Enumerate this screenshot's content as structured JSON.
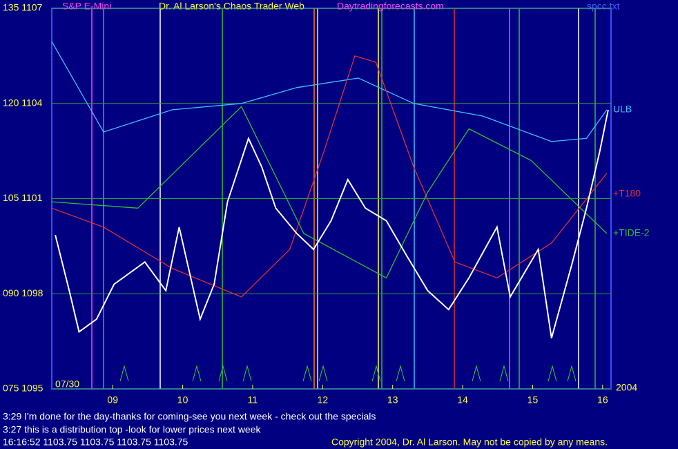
{
  "chart_data": {
    "type": "line",
    "title": "Dr. Al Larson's Chaos Trader Web",
    "site": "Daytradingforecasts.com",
    "instrument": "S&P E-Mini",
    "file": "spcc.txt",
    "start_date": "07/30",
    "year": "2004",
    "xlim": [
      8.13,
      16.12
    ],
    "xticks": [
      {
        "value": 9,
        "label": "09"
      },
      10,
      11,
      12,
      13,
      14,
      15,
      16
    ],
    "ylim": [
      1095,
      1107
    ],
    "yticks": [
      {
        "value": 1095,
        "label": "075 1095"
      },
      {
        "value": 1098,
        "label": "090 1098"
      },
      {
        "value": 1101,
        "label": "105 1101"
      },
      {
        "value": 1104,
        "label": "120 1104"
      },
      {
        "value": 1107,
        "label": "135 1107"
      }
    ],
    "grid": true,
    "series": [
      {
        "name": "ULB",
        "color": "#40c0ff",
        "x": [
          8.13,
          8.87,
          9.85,
          10.84,
          11.63,
          12.51,
          13.3,
          14.29,
          15.27,
          15.77,
          16.06
        ],
        "values": [
          1105.95,
          1103.1,
          1103.8,
          1104.0,
          1104.5,
          1104.8,
          1104.0,
          1103.6,
          1102.8,
          1102.9,
          1103.8
        ]
      },
      {
        "name": "+T180",
        "color": "#e03030",
        "x": [
          8.13,
          8.87,
          9.85,
          10.84,
          11.53,
          12.02,
          12.46,
          12.76,
          13.3,
          13.89,
          14.49,
          15.27,
          16.06
        ],
        "values": [
          1100.7,
          1100.1,
          1098.8,
          1097.9,
          1099.4,
          1102.5,
          1105.5,
          1105.3,
          1102.0,
          1099.0,
          1098.5,
          1099.6,
          1101.8
        ]
      },
      {
        "name": "+TIDE-2",
        "color": "#30c030",
        "x": [
          8.13,
          9.36,
          10.84,
          11.73,
          12.91,
          13.5,
          14.09,
          14.98,
          16.06
        ],
        "values": [
          1100.9,
          1100.7,
          1103.9,
          1099.9,
          1098.5,
          1101.2,
          1103.2,
          1102.2,
          1099.9
        ]
      },
      {
        "name": "S&P E-Mini",
        "color": "#ffffff",
        "x": [
          8.18,
          8.38,
          8.52,
          8.77,
          9.02,
          9.46,
          9.76,
          9.95,
          10.25,
          10.45,
          10.64,
          10.94,
          11.13,
          11.33,
          11.63,
          11.87,
          12.12,
          12.36,
          12.61,
          12.91,
          13.2,
          13.5,
          13.8,
          14.09,
          14.49,
          14.68,
          15.08,
          15.27,
          15.57,
          15.77,
          15.96,
          16.08
        ],
        "values": [
          1099.85,
          1098.1,
          1096.8,
          1097.2,
          1098.3,
          1099.0,
          1098.1,
          1100.1,
          1097.2,
          1098.3,
          1100.9,
          1102.9,
          1102.0,
          1100.7,
          1099.9,
          1099.4,
          1100.3,
          1101.6,
          1100.7,
          1100.3,
          1099.2,
          1098.1,
          1097.5,
          1098.5,
          1100.1,
          1097.9,
          1099.4,
          1096.6,
          1099.0,
          1100.7,
          1102.5,
          1103.8
        ]
      }
    ],
    "messages": [
      "3:29 I'm done for the day-thanks for coming-see you next week - check out the specials",
      "3:27 this is a distribution top -look for lower prices next week"
    ],
    "status": "16:16:52  1103.75 1103.75 1103.75 1103.75",
    "copyright": "Copyright 2004, Dr. Al Larson. May not be copied by any means."
  }
}
